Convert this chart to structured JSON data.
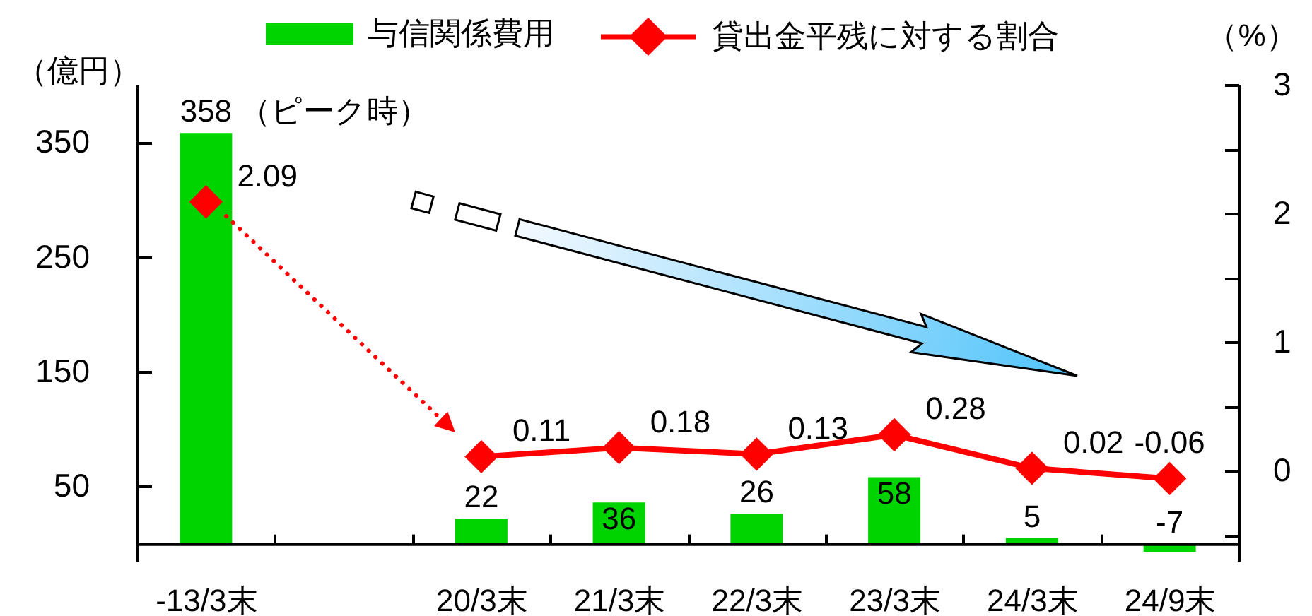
{
  "chart_data": {
    "type": "bar",
    "categories": [
      "-13/3末",
      null,
      "20/3末",
      "21/3末",
      "22/3末",
      "23/3末",
      "24/3末",
      "24/9末"
    ],
    "series": [
      {
        "name": "与信関係費用",
        "color": "#00d400",
        "values": [
          358,
          null,
          22,
          36,
          26,
          58,
          5,
          -7
        ]
      },
      {
        "name": "貸出金平残に対する割合",
        "type": "line",
        "axis": "y2",
        "color": "#ff0000",
        "values": [
          2.09,
          null,
          0.11,
          0.18,
          0.13,
          0.28,
          0.02,
          -0.06
        ]
      }
    ],
    "ylabel": "（億円）",
    "y2label": "（%）",
    "ylim": [
      -15,
      400
    ],
    "yticks": [
      50,
      150,
      250,
      350
    ],
    "y2lim": [
      -0.7,
      3
    ],
    "y2ticks": [
      {
        "value": -0.5,
        "label": null
      },
      0,
      {
        "value": 0.5,
        "label": null
      },
      1,
      {
        "value": 1.5,
        "label": null
      },
      2,
      {
        "value": 2.5,
        "label": null
      },
      3
    ],
    "data_labels": true,
    "marker": "diamond",
    "legend": "top",
    "annotations": [
      {
        "text": "（ピーク時）",
        "x": "-13/3末",
        "y": 358
      }
    ]
  }
}
